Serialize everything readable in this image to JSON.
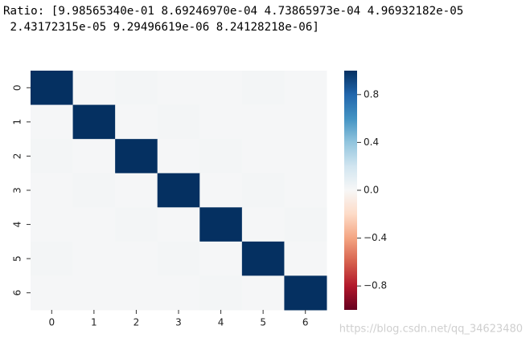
{
  "output_text": [
    "Ratio: [9.98565340e-01 8.69246970e-04 4.73865973e-04 4.96932182e-05",
    " 2.43172315e-05 9.29496619e-06 8.24128218e-06]"
  ],
  "watermark": "https://blog.csdn.net/qq_34623480",
  "chart_data": {
    "type": "heatmap",
    "x_categories": [
      "0",
      "1",
      "2",
      "3",
      "4",
      "5",
      "6"
    ],
    "y_categories": [
      "0",
      "1",
      "2",
      "3",
      "4",
      "5",
      "6"
    ],
    "z": [
      [
        1,
        0.01,
        0.02,
        0.01,
        0.01,
        0.02,
        0.01
      ],
      [
        0.01,
        1,
        0.01,
        0.02,
        0.01,
        0.01,
        0.01
      ],
      [
        0.02,
        0.01,
        1,
        0.01,
        0.02,
        0.01,
        0.01
      ],
      [
        0.01,
        0.02,
        0.01,
        1,
        0.01,
        0.02,
        0.01
      ],
      [
        0.01,
        0.01,
        0.02,
        0.01,
        1,
        0.01,
        0.02
      ],
      [
        0.02,
        0.01,
        0.01,
        0.02,
        0.01,
        1,
        0.01
      ],
      [
        0.01,
        0.01,
        0.01,
        0.01,
        0.02,
        0.01,
        1
      ]
    ],
    "zlim": [
      -1,
      1
    ],
    "colorscale": [
      "#67001f",
      "#b2182b",
      "#d6604d",
      "#f4a582",
      "#fddbc7",
      "#f7f7f7",
      "#d1e5f0",
      "#92c5de",
      "#4393c3",
      "#2166ac",
      "#053061"
    ],
    "colorbar_ticks": [
      0.8,
      0.4,
      {
        "value": 0,
        "label": "0.0"
      },
      {
        "value": -0.4,
        "label": "−0.4"
      },
      {
        "value": -0.8,
        "label": "−0.8"
      }
    ]
  }
}
